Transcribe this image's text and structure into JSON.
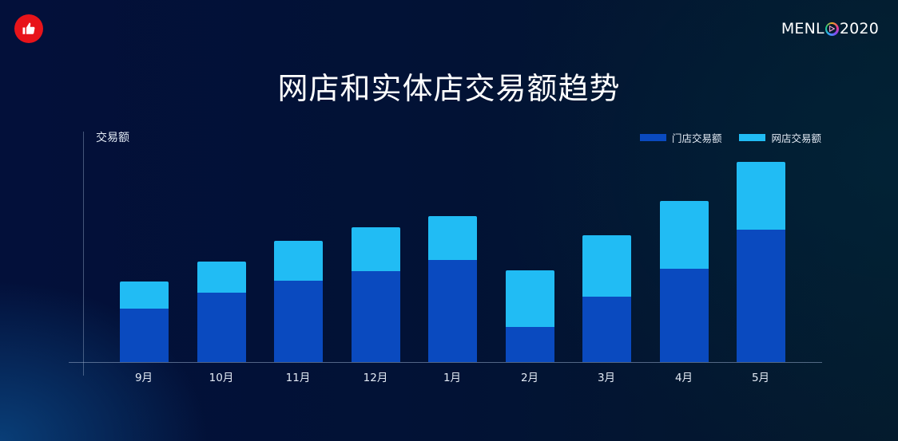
{
  "header": {
    "badge_icon": "thumbs-up-icon",
    "brand": {
      "prefix": "MENL",
      "icon": "play-ring-icon",
      "suffix": "2020"
    }
  },
  "title": "网店和实体店交易额趋势",
  "colors": {
    "store": "#0a4abf",
    "online": "#21bcf4",
    "badge": "#e8141a",
    "background": "#03103a"
  },
  "chart_data": {
    "type": "bar",
    "stacked": true,
    "title": "网店和实体店交易额趋势",
    "xlabel": "",
    "ylabel": "交易额",
    "categories": [
      "9月",
      "10月",
      "11月",
      "12月",
      "1月",
      "2月",
      "3月",
      "4月",
      "5月"
    ],
    "series": [
      {
        "name": "门店交易额",
        "color": "#0a4abf",
        "values": [
          67,
          87,
          102,
          114,
          128,
          44,
          82,
          117,
          166
        ]
      },
      {
        "name": "网店交易额",
        "color": "#21bcf4",
        "values": [
          34,
          39,
          50,
          55,
          55,
          71,
          77,
          85,
          85
        ]
      }
    ],
    "ylim": [
      0,
      260
    ],
    "units_note": "relative heights (no y-axis ticks shown)",
    "grid": false,
    "legend_position": "top-right"
  },
  "legend": [
    {
      "label": "门店交易额",
      "color": "#0a4abf"
    },
    {
      "label": "网店交易额",
      "color": "#21bcf4"
    }
  ]
}
